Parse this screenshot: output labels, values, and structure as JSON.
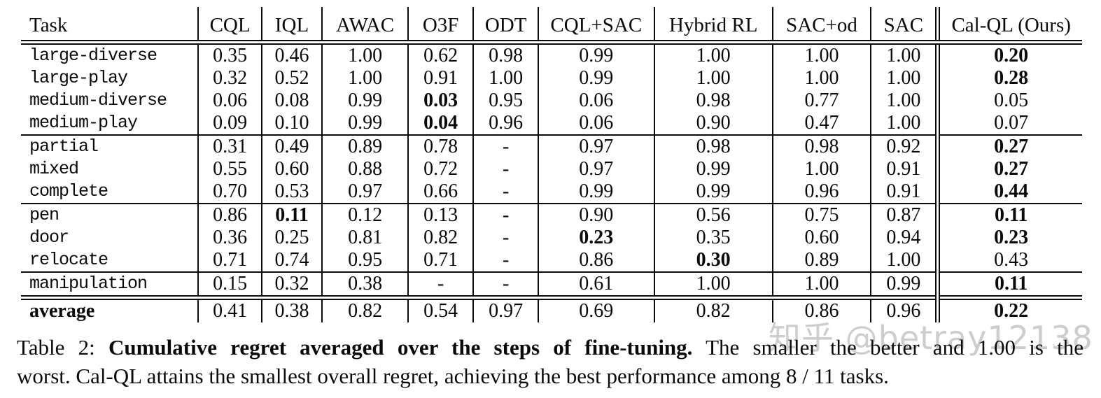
{
  "colors": {
    "text": "#0a0a0a",
    "watermark": "#bfbfbf",
    "background": "#ffffff"
  },
  "table": {
    "columns": [
      "Task",
      "CQL",
      "IQL",
      "AWAC",
      "O3F",
      "ODT",
      "CQL+SAC",
      "Hybrid RL",
      "SAC+od",
      "SAC",
      "Cal-QL (Ours)"
    ],
    "groups": [
      {
        "top_rule": "none",
        "rows": [
          {
            "task": "large-diverse",
            "vals": [
              "0.35",
              "0.46",
              "1.00",
              "0.62",
              "0.98",
              "0.99",
              "1.00",
              "1.00",
              "1.00",
              "0.20"
            ],
            "bold": [
              9
            ]
          },
          {
            "task": "large-play",
            "vals": [
              "0.32",
              "0.52",
              "1.00",
              "0.91",
              "1.00",
              "0.99",
              "1.00",
              "1.00",
              "1.00",
              "0.28"
            ],
            "bold": [
              9
            ]
          },
          {
            "task": "medium-diverse",
            "vals": [
              "0.06",
              "0.08",
              "0.99",
              "0.03",
              "0.95",
              "0.06",
              "0.98",
              "0.77",
              "1.00",
              "0.05"
            ],
            "bold": [
              3
            ]
          },
          {
            "task": "medium-play",
            "vals": [
              "0.09",
              "0.10",
              "0.99",
              "0.04",
              "0.96",
              "0.06",
              "0.90",
              "0.47",
              "1.00",
              "0.07"
            ],
            "bold": [
              3
            ]
          }
        ]
      },
      {
        "top_rule": "single",
        "rows": [
          {
            "task": "partial",
            "vals": [
              "0.31",
              "0.49",
              "0.89",
              "0.78",
              "-",
              "0.97",
              "0.98",
              "0.98",
              "0.92",
              "0.27"
            ],
            "bold": [
              9
            ]
          },
          {
            "task": "mixed",
            "vals": [
              "0.55",
              "0.60",
              "0.88",
              "0.72",
              "-",
              "0.97",
              "0.99",
              "1.00",
              "0.91",
              "0.27"
            ],
            "bold": [
              9
            ]
          },
          {
            "task": "complete",
            "vals": [
              "0.70",
              "0.53",
              "0.97",
              "0.66",
              "-",
              "0.99",
              "0.99",
              "0.96",
              "0.91",
              "0.44"
            ],
            "bold": [
              9
            ]
          }
        ]
      },
      {
        "top_rule": "single",
        "rows": [
          {
            "task": "pen",
            "vals": [
              "0.86",
              "0.11",
              "0.12",
              "0.13",
              "-",
              "0.90",
              "0.56",
              "0.75",
              "0.87",
              "0.11"
            ],
            "bold": [
              1,
              9
            ]
          },
          {
            "task": "door",
            "vals": [
              "0.36",
              "0.25",
              "0.81",
              "0.82",
              "-",
              "0.23",
              "0.35",
              "0.60",
              "0.94",
              "0.23"
            ],
            "bold": [
              5,
              9
            ]
          },
          {
            "task": "relocate",
            "vals": [
              "0.71",
              "0.74",
              "0.95",
              "0.71",
              "-",
              "0.86",
              "0.30",
              "0.89",
              "1.00",
              "0.43"
            ],
            "bold": [
              6
            ]
          }
        ]
      },
      {
        "top_rule": "single",
        "rows": [
          {
            "task": "manipulation",
            "vals": [
              "0.15",
              "0.32",
              "0.38",
              "-",
              "-",
              "0.61",
              "1.00",
              "1.00",
              "0.99",
              "0.11"
            ],
            "bold": [
              9
            ]
          }
        ]
      },
      {
        "top_rule": "double",
        "rows": [
          {
            "task": "average",
            "task_style": "serif-bold",
            "vals": [
              "0.41",
              "0.38",
              "0.82",
              "0.54",
              "0.97",
              "0.69",
              "0.82",
              "0.86",
              "0.96",
              "0.22"
            ],
            "bold": [
              9
            ]
          }
        ]
      }
    ]
  },
  "caption": {
    "label": "Table 2:",
    "bold_text": "Cumulative regret averaged over the steps of fine-tuning.",
    "line1_rest": "The smaller the better and 1.00 is the",
    "line2": "worst. Cal-QL attains the smallest overall regret, achieving the best performance among 8 / 11 tasks."
  },
  "watermark": "知乎 @betray12138"
}
